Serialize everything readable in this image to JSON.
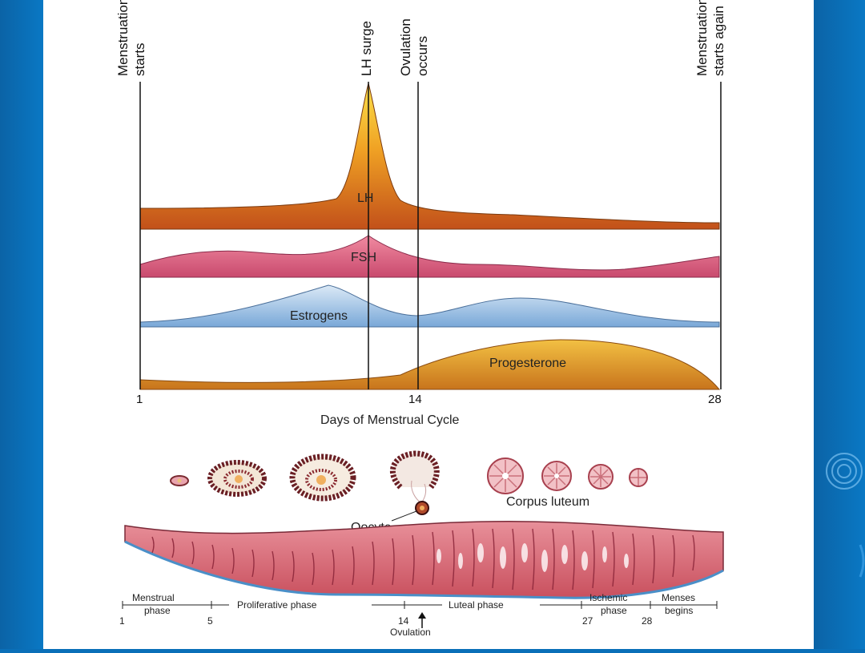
{
  "event_labels": {
    "menstruation_starts": [
      "Menstruation",
      "starts"
    ],
    "lh_surge": "LH surge",
    "ovulation_occurs": [
      "Ovulation",
      "occurs"
    ],
    "menstruation_again": [
      "Menstruation",
      "starts again"
    ]
  },
  "hormones": {
    "lh": "LH",
    "fsh": "FSH",
    "estrogens": "Estrogens",
    "progesterone": "Progesterone"
  },
  "axis": {
    "day_start": "1",
    "day_mid": "14",
    "day_end": "28",
    "title": "Days of Menstrual Cycle"
  },
  "ovary": {
    "corpus_luteum": "Corpus luteum",
    "oocyte": "Oocyte"
  },
  "timeline": {
    "menstrual_1": "Menstrual",
    "menstrual_2": "phase",
    "proliferative": "Proliferative phase",
    "luteal": "Luteal phase",
    "ischemic_1": "Ischemic",
    "ischemic_2": "phase",
    "menses_1": "Menses",
    "menses_2": "begins",
    "d1": "1",
    "d5": "5",
    "d14": "14",
    "d27": "27",
    "d28": "28",
    "ovulation": "Ovulation"
  },
  "colors": {
    "lh": "#c85a14",
    "lh_peak": "#f6c12a",
    "fsh": "#dc6f8a",
    "estrogen": "#8fb7e0",
    "progesterone": "#d8891e",
    "endometrium": "#d86a78"
  }
}
